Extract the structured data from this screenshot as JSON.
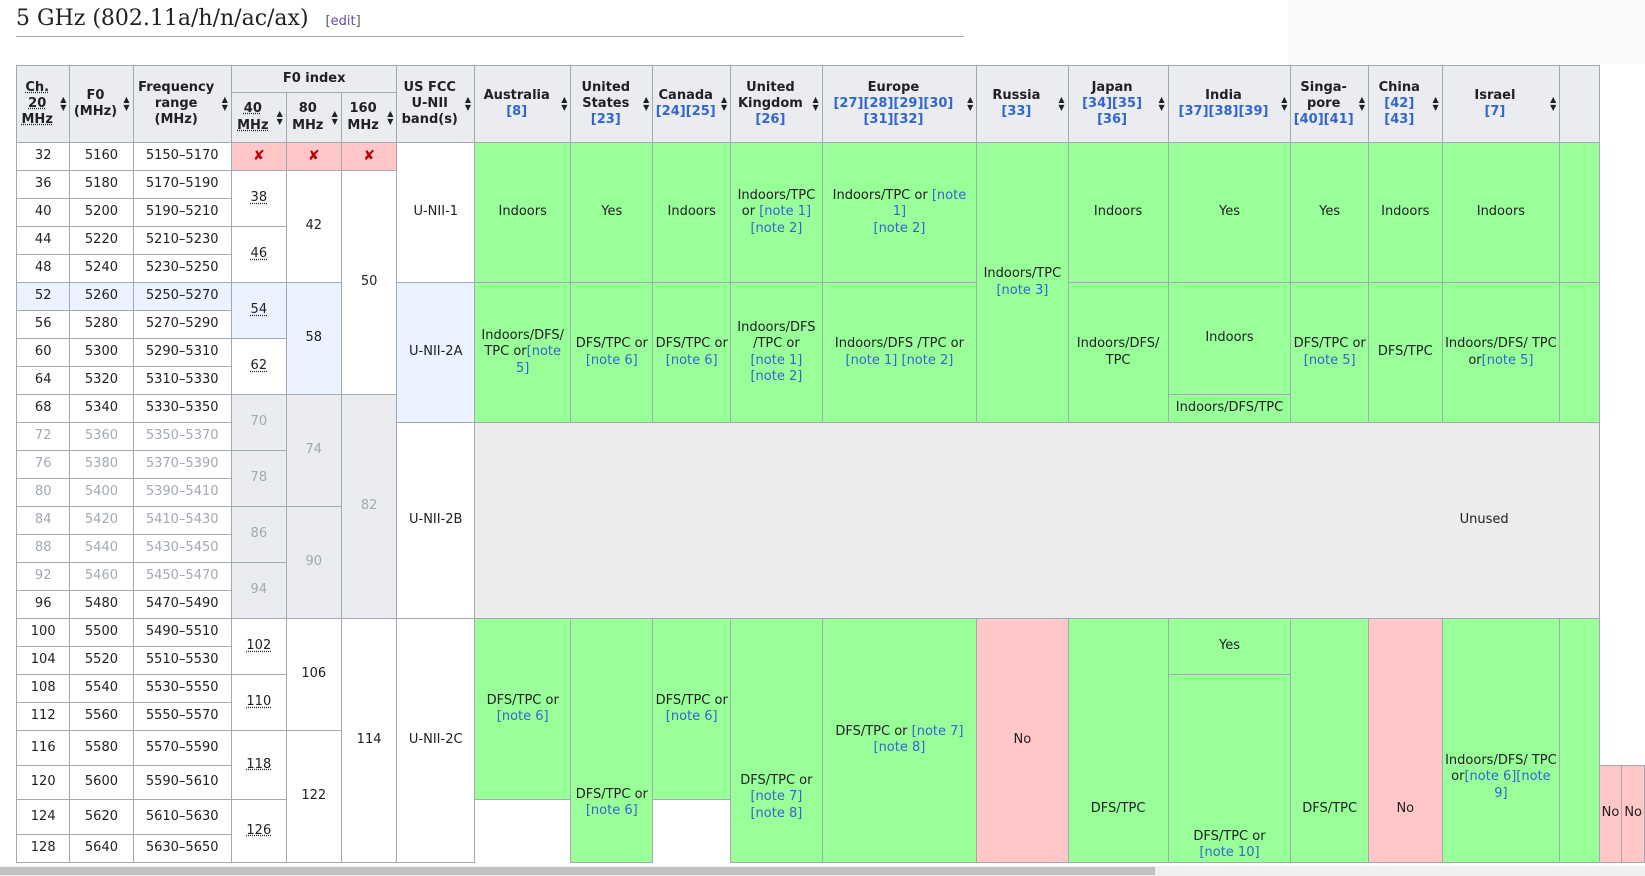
{
  "section": {
    "title": "5 GHz (802.11a/h/n/ac/ax)",
    "edit_open": "[",
    "edit_label": "edit",
    "edit_close": "]"
  },
  "headers": {
    "ch": "Ch. 20 MHz",
    "f0": "F0 (MHz)",
    "freq": "Frequency range (MHz)",
    "f0index": "F0 index",
    "w40": "40 MHz",
    "w80": "80 MHz",
    "w160": "160 MHz",
    "fcc": "US FCC U-NII band(s)",
    "australia": {
      "name": "Australia",
      "ref": "[8]"
    },
    "us": {
      "name": "United States",
      "ref": "[23]"
    },
    "canada": {
      "name": "Canada",
      "ref": "[24][25]"
    },
    "uk": {
      "name": "United Kingdom",
      "ref": "[26]"
    },
    "europe": {
      "name": "Europe",
      "ref": "[27][28][29][30][31][32]"
    },
    "russia": {
      "name": "Russia",
      "ref": "[33]"
    },
    "japan": {
      "name": "Japan",
      "ref": "[34][35][36]"
    },
    "india": {
      "name": "India",
      "ref": "[37][38][39]"
    },
    "singapore": {
      "name": "Singa- pore",
      "ref": "[40][41]"
    },
    "china": {
      "name": "China",
      "ref": "[42][43]"
    },
    "israel": {
      "name": "Israel",
      "ref": "[7]"
    }
  },
  "rows": [
    [
      "32",
      "5160",
      "5150–5170"
    ],
    [
      "36",
      "5180",
      "5170–5190"
    ],
    [
      "40",
      "5200",
      "5190–5210"
    ],
    [
      "44",
      "5220",
      "5210–5230"
    ],
    [
      "48",
      "5240",
      "5230–5250"
    ],
    [
      "52",
      "5260",
      "5250–5270"
    ],
    [
      "56",
      "5280",
      "5270–5290"
    ],
    [
      "60",
      "5300",
      "5290–5310"
    ],
    [
      "64",
      "5320",
      "5310–5330"
    ],
    [
      "68",
      "5340",
      "5330–5350"
    ],
    [
      "72",
      "5360",
      "5350–5370"
    ],
    [
      "76",
      "5380",
      "5370–5390"
    ],
    [
      "80",
      "5400",
      "5390–5410"
    ],
    [
      "84",
      "5420",
      "5410–5430"
    ],
    [
      "88",
      "5440",
      "5430–5450"
    ],
    [
      "92",
      "5460",
      "5450–5470"
    ],
    [
      "96",
      "5480",
      "5470–5490"
    ],
    [
      "100",
      "5500",
      "5490–5510"
    ],
    [
      "104",
      "5520",
      "5510–5530"
    ],
    [
      "108",
      "5540",
      "5530–5550"
    ],
    [
      "112",
      "5560",
      "5550–5570"
    ],
    [
      "116",
      "5580",
      "5570–5590"
    ],
    [
      "120",
      "5600",
      "5590–5610"
    ],
    [
      "124",
      "5620",
      "5610–5630"
    ],
    [
      "128",
      "5640",
      "5630–5650"
    ]
  ],
  "idx40": [
    "38",
    "46",
    "54",
    "62",
    "70",
    "78",
    "86",
    "94",
    "102",
    "110",
    "118",
    "126"
  ],
  "idx80": [
    "42",
    "58",
    "74",
    "90",
    "106",
    "122"
  ],
  "idx160": [
    "50",
    "82",
    "114"
  ],
  "cross": "✘",
  "bands": [
    "U-NII-1",
    "U-NII-2A",
    "U-NII-2B",
    "U-NII-2C"
  ],
  "cells": {
    "indoors": "Indoors",
    "yes": "Yes",
    "no": "No",
    "unused": "Unused",
    "dfstpc": "DFS/TPC",
    "uk1_a": "Indoors/TPC or",
    "eu1_a": "Indoors/TPC or",
    "russia1": "Indoors/TPC",
    "au2_a": "Indoors/DFS/ TPC or",
    "us2_a": "DFS/TPC or",
    "ca2_a": "DFS/TPC or",
    "uk2_a": "Indoors/DFS /TPC or",
    "eu2_a": "Indoors/DFS /TPC or",
    "jp2": "Indoors/DFS/ TPC",
    "in2_b": "Indoors/DFS/TPC",
    "sg2_a": "DFS/TPC or",
    "il2_a": "Indoors/DFS/ TPC or",
    "au3_a": "DFS/TPC or",
    "us3_a": "DFS/TPC or",
    "ca3_a": "DFS/TPC or",
    "uk3_a": "DFS/TPC or",
    "eu3_a": "DFS/TPC or",
    "in3_b": "DFS/TPC or",
    "il3_a": "Indoors/DFS/ TPC or"
  },
  "notes": {
    "n1": "[note 1]",
    "n2": "[note 2]",
    "n3": "[note 3]",
    "n5": "[note 5]",
    "n6": "[note 6]",
    "n7": "[note 7]",
    "n8": "[note 8]",
    "n9": "[note 9]",
    "n10": "[note 10]"
  },
  "colors": {
    "permitted": "#99ff99",
    "forbidden": "#ffc7c7",
    "unused": "#ececec",
    "header": "#eaecf0",
    "link": "#3366cc"
  }
}
